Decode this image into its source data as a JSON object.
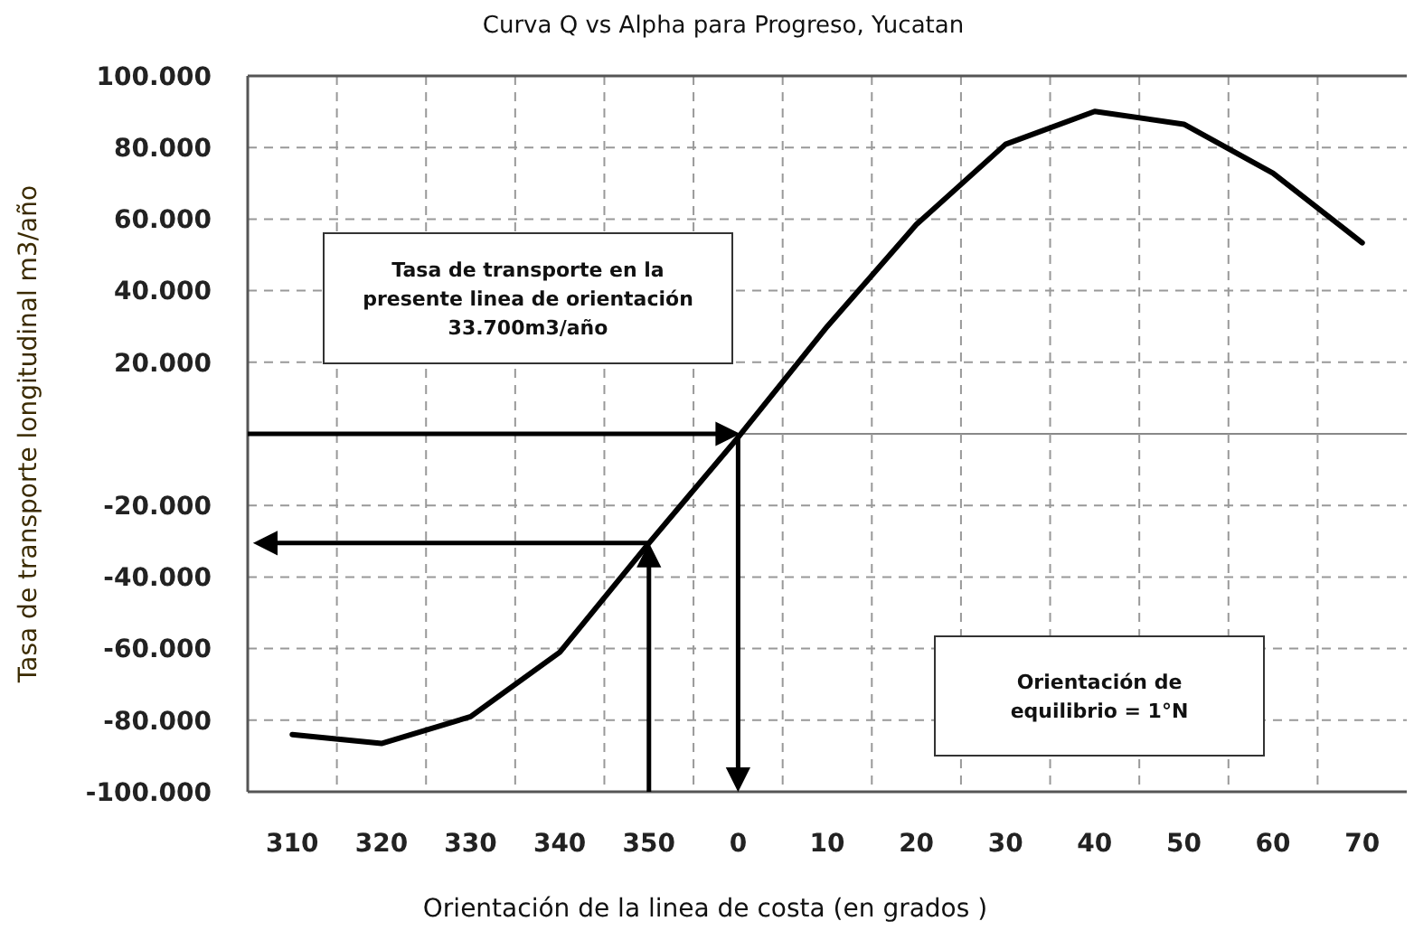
{
  "chart_data": {
    "type": "line",
    "title": "Curva Q vs Alpha para Progreso, Yucatan",
    "xlabel": "Orientación de la linea de costa (en grados )",
    "ylabel": "Tasa de transporte  longitudinal  m3/año",
    "categories": [
      "310",
      "320",
      "330",
      "340",
      "350",
      "0",
      "10",
      "20",
      "30",
      "40",
      "50",
      "60",
      "70"
    ],
    "series": [
      {
        "color": "#000000",
        "values": [
          -84000,
          -86500,
          -79000,
          -61000,
          -30500,
          -1000,
          30000,
          58500,
          80900,
          90100,
          86500,
          72800,
          53400
        ]
      }
    ],
    "ylim": [
      -100000,
      100000
    ],
    "yticks": [
      {
        "value": -100000,
        "label": "-100.000"
      },
      {
        "value": -80000,
        "label": "-80.000"
      },
      {
        "value": -60000,
        "label": "-60.000"
      },
      {
        "value": -40000,
        "label": "-40.000"
      },
      {
        "value": -20000,
        "label": "-20.000"
      },
      {
        "value": 0,
        "label": null
      },
      {
        "value": 20000,
        "label": "20.000"
      },
      {
        "value": 40000,
        "label": "40.000"
      },
      {
        "value": 60000,
        "label": "60.000"
      },
      {
        "value": 80000,
        "label": "80.000"
      },
      {
        "value": 100000,
        "label": "100.000"
      }
    ],
    "grid": true,
    "marker": "none",
    "line_style": "solid",
    "annotations": [
      "Tasa de transporte en la presente linea de orientación 33.700m3/año",
      "Orientación de equilibrio = 1°N"
    ]
  }
}
